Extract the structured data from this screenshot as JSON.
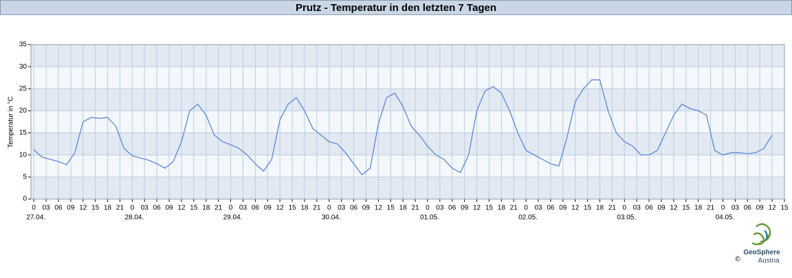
{
  "chart_data": {
    "type": "line",
    "title": "Prutz - Temperatur in den letzten 7 Tagen",
    "ylabel": "Temperatur in °C",
    "x": [
      0,
      2,
      4,
      6,
      8,
      10,
      12,
      14,
      16,
      18,
      20,
      22,
      24,
      26,
      28,
      30,
      32,
      34,
      36,
      38,
      40,
      42,
      44,
      46,
      48,
      50,
      52,
      54,
      56,
      58,
      60,
      62,
      64,
      66,
      68,
      70,
      72,
      74,
      76,
      78,
      80,
      82,
      84,
      86,
      88,
      90,
      92,
      94,
      96,
      98,
      100,
      102,
      104,
      106,
      108,
      110,
      112,
      114,
      116,
      118,
      120,
      122,
      124,
      126,
      128,
      130,
      132,
      134,
      136,
      138,
      140,
      142,
      144,
      146,
      148,
      150,
      152,
      154,
      156,
      158,
      160,
      162,
      164,
      166,
      168,
      170,
      172,
      174,
      176,
      178,
      180
    ],
    "series": [
      {
        "name": "Temperatur",
        "color": "#4f7fd6",
        "values": [
          11.2,
          9.5,
          9,
          8.5,
          7.8,
          10.5,
          17.5,
          18.5,
          18.3,
          18.5,
          16.5,
          11.5,
          9.8,
          9.3,
          8.8,
          8,
          7,
          8.5,
          13,
          20,
          21.5,
          19,
          14.5,
          13,
          12.3,
          11.5,
          10,
          8,
          6.3,
          9,
          18,
          21.5,
          23,
          20,
          16,
          14.5,
          13,
          12.5,
          10.5,
          8,
          5.5,
          7,
          17,
          23,
          24,
          21,
          16.5,
          14.5,
          12,
          10,
          9,
          7,
          6,
          10,
          20,
          24.5,
          25.5,
          24,
          20,
          15,
          11,
          10,
          9,
          8,
          7.5,
          14,
          22,
          25,
          27,
          27,
          20,
          15,
          13,
          12,
          10,
          10,
          11,
          15,
          19,
          21.5,
          20.5,
          20,
          19,
          11,
          10,
          10.5,
          10.5,
          10.3,
          10.5,
          11.5,
          14.5
        ]
      }
    ],
    "xlim": [
      -0.7,
      183
    ],
    "xticks": [
      0,
      {
        "value": 3,
        "label": "03"
      },
      {
        "value": 6,
        "label": "06"
      },
      {
        "value": 9,
        "label": "09"
      },
      12,
      15,
      18,
      21,
      {
        "value": 24,
        "label": "0"
      },
      {
        "value": 27,
        "label": "03"
      },
      {
        "value": 30,
        "label": "06"
      },
      {
        "value": 33,
        "label": "09"
      },
      {
        "value": 36,
        "label": "12"
      },
      {
        "value": 39,
        "label": "15"
      },
      {
        "value": 42,
        "label": "18"
      },
      {
        "value": 45,
        "label": "21"
      },
      {
        "value": 48,
        "label": "0"
      },
      {
        "value": 51,
        "label": "03"
      },
      {
        "value": 54,
        "label": "06"
      },
      {
        "value": 57,
        "label": "09"
      },
      {
        "value": 60,
        "label": "12"
      },
      {
        "value": 63,
        "label": "15"
      },
      {
        "value": 66,
        "label": "18"
      },
      {
        "value": 69,
        "label": "21"
      },
      {
        "value": 72,
        "label": "0"
      },
      {
        "value": 75,
        "label": "03"
      },
      {
        "value": 78,
        "label": "06"
      },
      {
        "value": 81,
        "label": "09"
      },
      {
        "value": 84,
        "label": "12"
      },
      {
        "value": 87,
        "label": "15"
      },
      {
        "value": 90,
        "label": "18"
      },
      {
        "value": 93,
        "label": "21"
      },
      {
        "value": 96,
        "label": "0"
      },
      {
        "value": 99,
        "label": "03"
      },
      {
        "value": 102,
        "label": "06"
      },
      {
        "value": 105,
        "label": "09"
      },
      {
        "value": 108,
        "label": "12"
      },
      {
        "value": 111,
        "label": "15"
      },
      {
        "value": 114,
        "label": "18"
      },
      {
        "value": 117,
        "label": "21"
      },
      {
        "value": 120,
        "label": "0"
      },
      {
        "value": 123,
        "label": "03"
      },
      {
        "value": 126,
        "label": "06"
      },
      {
        "value": 129,
        "label": "09"
      },
      {
        "value": 132,
        "label": "12"
      },
      {
        "value": 135,
        "label": "15"
      },
      {
        "value": 138,
        "label": "18"
      },
      {
        "value": 141,
        "label": "21"
      },
      {
        "value": 144,
        "label": "0"
      },
      {
        "value": 147,
        "label": "03"
      },
      {
        "value": 150,
        "label": "06"
      },
      {
        "value": 153,
        "label": "09"
      },
      {
        "value": 156,
        "label": "12"
      },
      {
        "value": 159,
        "label": "15"
      },
      {
        "value": 162,
        "label": "18"
      },
      {
        "value": 165,
        "label": "21"
      },
      {
        "value": 168,
        "label": "0"
      },
      {
        "value": 171,
        "label": "03"
      },
      {
        "value": 174,
        "label": "06"
      },
      {
        "value": 177,
        "label": "09"
      },
      {
        "value": 180,
        "label": "12"
      },
      {
        "value": 183,
        "label": "15"
      }
    ],
    "date_labels": [
      {
        "value": 0,
        "label": "27.04."
      },
      {
        "value": 24,
        "label": "28.04."
      },
      {
        "value": 48,
        "label": "29.04."
      },
      {
        "value": 72,
        "label": "30.04."
      },
      {
        "value": 96,
        "label": "01.05."
      },
      {
        "value": 120,
        "label": "02.05."
      },
      {
        "value": 144,
        "label": "03.05."
      },
      {
        "value": 168,
        "label": "04.05."
      }
    ],
    "ylim": [
      0,
      35
    ],
    "yticks": [
      0,
      5,
      10,
      15,
      20,
      25,
      30,
      35
    ],
    "grid": true
  },
  "logo": {
    "name": "GeoSphere",
    "sub": "Austria",
    "copyright": "©"
  }
}
